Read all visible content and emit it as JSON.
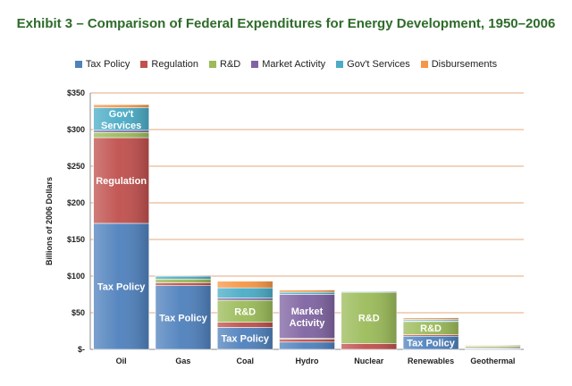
{
  "chart_data": {
    "type": "bar",
    "stacked": true,
    "title": "Exhibit 3 – Comparison of Federal Expenditures for Energy Development, 1950–2006",
    "ylabel": "Billions of 2006 Dollars",
    "xlabel": "",
    "ylim": [
      0,
      350
    ],
    "yticks": [
      0,
      50,
      100,
      150,
      200,
      250,
      300,
      350
    ],
    "ytick_labels": [
      "$-",
      "$50",
      "$100",
      "$150",
      "$200",
      "$250",
      "$300",
      "$350"
    ],
    "grid": true,
    "legend_position": "top",
    "categories": [
      "Oil",
      "Gas",
      "Coal",
      "Hydro",
      "Nuclear",
      "Renewables",
      "Geothermal"
    ],
    "series": [
      {
        "name": "Tax Policy",
        "color": "#4f81bd",
        "values": [
          172,
          87,
          30,
          10,
          0,
          18,
          1
        ]
      },
      {
        "name": "Regulation",
        "color": "#c0504d",
        "values": [
          117,
          4,
          7,
          4,
          8,
          2,
          1
        ]
      },
      {
        "name": "R&D",
        "color": "#9bbb59",
        "values": [
          7,
          5,
          30,
          1,
          70,
          18,
          2
        ]
      },
      {
        "name": "Market Activity",
        "color": "#8064a2",
        "values": [
          3,
          0,
          3,
          60,
          0,
          1,
          0
        ]
      },
      {
        "name": "Gov't Services",
        "color": "#4bacc6",
        "values": [
          31,
          4,
          14,
          3,
          1,
          2,
          1
        ]
      },
      {
        "name": "Disbursements",
        "color": "#f79646",
        "values": [
          4,
          1,
          9,
          3,
          0,
          2,
          1
        ]
      }
    ],
    "annotations": [
      {
        "text": "Tax Policy",
        "category": "Oil",
        "series": "Tax Policy"
      },
      {
        "text": "Regulation",
        "category": "Oil",
        "series": "Regulation"
      },
      {
        "text": "Gov't Services",
        "category": "Oil",
        "series": "Gov't Services"
      },
      {
        "text": "Tax Policy",
        "category": "Gas",
        "series": "Tax Policy"
      },
      {
        "text": "R&D",
        "category": "Coal",
        "series": "R&D"
      },
      {
        "text": "Tax Policy",
        "category": "Coal",
        "series": "Tax Policy"
      },
      {
        "text": "Market Activity",
        "category": "Hydro",
        "series": "Market Activity"
      },
      {
        "text": "R&D",
        "category": "Nuclear",
        "series": "R&D"
      },
      {
        "text": "R&D",
        "category": "Renewables",
        "series": "R&D"
      },
      {
        "text": "Tax Policy",
        "category": "Renewables",
        "series": "Tax Policy"
      }
    ]
  }
}
